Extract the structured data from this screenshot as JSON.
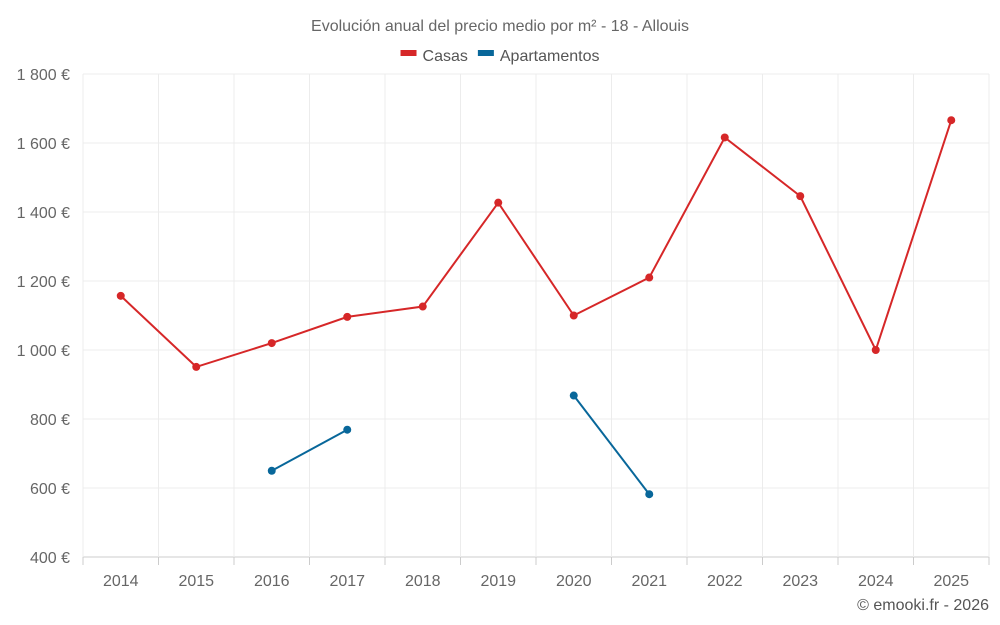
{
  "chart_data": {
    "type": "line",
    "title": "Evolución anual del precio medio por m² - 18 - Allouis",
    "categories": [
      "2014",
      "2015",
      "2016",
      "2017",
      "2018",
      "2019",
      "2020",
      "2021",
      "2022",
      "2023",
      "2024",
      "2025"
    ],
    "series": [
      {
        "name": "Casas",
        "color": "#d62728",
        "values": [
          1157,
          951,
          1020,
          1096,
          1126,
          1427,
          1100,
          1210,
          1616,
          1446,
          1000,
          1666
        ]
      },
      {
        "name": "Apartamentos",
        "color": "#08679a",
        "values": [
          null,
          null,
          650,
          769,
          null,
          null,
          868,
          582,
          null,
          null,
          null,
          null
        ]
      }
    ],
    "ylim": [
      400,
      1800
    ],
    "yticks": [
      400,
      600,
      800,
      1000,
      1200,
      1400,
      1600,
      1800
    ],
    "ytick_labels": [
      "400 €",
      "600 €",
      "800 €",
      "1 000 €",
      "1 200 €",
      "1 400 €",
      "1 600 €",
      "1 800 €"
    ],
    "xlabel": "",
    "ylabel": "",
    "legend_position": "top-center",
    "grid": true
  },
  "credit": "© emooki.fr - 2026"
}
